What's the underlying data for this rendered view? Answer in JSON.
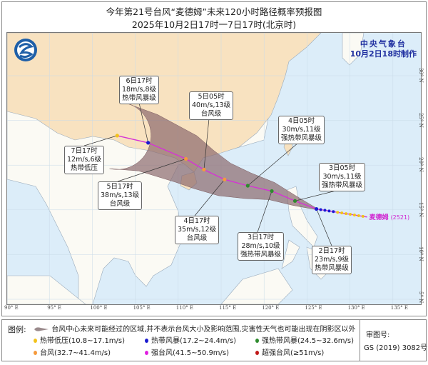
{
  "title": "今年第21号台风“麦德姆”未来120小时路径概率预报图",
  "subtitle": "2025年10月2日17时一7日17时(北京时)",
  "issuer": {
    "name": "中央气象台",
    "made": "10月2日18时制作"
  },
  "typhoon": {
    "name": "麦德姆",
    "code": "(2521)",
    "lon": 132.0,
    "lat": 14.2
  },
  "axes": {
    "lon_ticks": [
      "90° E",
      "95° E",
      "100° E",
      "105° E",
      "110° E",
      "115° E",
      "120° E",
      "125° E",
      "130° E",
      "135° E"
    ],
    "lat_ticks": [
      "30° N",
      "25° N",
      "20° N",
      "15° N",
      "10° N",
      "5° N"
    ]
  },
  "forecast_points": [
    {
      "time": "2日17时",
      "wind": "23m/s,9级",
      "level": "热带风暴级",
      "lon": 126.1,
      "lat": 15.1,
      "cat": "ts"
    },
    {
      "time": "3日05时",
      "wind": "30m/s,11级",
      "level": "强热带风暴级",
      "lon": 123.6,
      "lat": 16.0,
      "cat": "sts"
    },
    {
      "time": "3日17时",
      "wind": "28m/s,10级",
      "level": "强热带风暴级",
      "lon": 120.9,
      "lat": 17.1,
      "cat": "sts"
    },
    {
      "time": "4日05时",
      "wind": "30m/s,11级",
      "level": "强热带风暴级",
      "lon": 118.1,
      "lat": 17.7,
      "cat": "sts"
    },
    {
      "time": "4日17时",
      "wind": "35m/s,12级",
      "level": "台风级",
      "lon": 115.4,
      "lat": 18.4,
      "cat": "ty"
    },
    {
      "time": "5日05时",
      "wind": "40m/s,13级",
      "level": "台风级",
      "lon": 113.0,
      "lat": 19.5,
      "cat": "ty"
    },
    {
      "time": "5日17时",
      "wind": "38m/s,13级",
      "level": "台风级",
      "lon": 110.9,
      "lat": 20.7,
      "cat": "ty"
    },
    {
      "time": "6日17时",
      "wind": "18m/s,8级",
      "level": "热带风暴级",
      "lon": 106.5,
      "lat": 22.5,
      "cat": "ts"
    },
    {
      "time": "7日17时",
      "wind": "12m/s,6级",
      "level": "热带低压",
      "lon": 102.9,
      "lat": 23.3,
      "cat": "td"
    }
  ],
  "legend": {
    "title": "图例:",
    "cone": "台风中心未来可能经过的区域,并不表示台风大小及影响范围,灾害性天气也可能出现在阴影区以外",
    "items": [
      {
        "label": "热带低压(10.8~17.1m/s)",
        "color": "#f2c21b"
      },
      {
        "label": "热带风暴(17.2~24.4m/s)",
        "color": "#1a1ad0"
      },
      {
        "label": "强热带风暴(24.5~32.6m/s)",
        "color": "#2e8b2e"
      },
      {
        "label": "台风(32.7~41.4m/s)",
        "color": "#f59a3c"
      },
      {
        "label": "强台风(41.5~50.9m/s)",
        "color": "#e020e0"
      },
      {
        "label": "超强台风(≥51m/s)",
        "color": "#c01818"
      }
    ],
    "review_label": "审图号:",
    "review_no": "GS (2019) 3082号"
  },
  "colors": {
    "land_china": "#f8e2c0",
    "land_other": "#fbfaf4",
    "sea": "#dcedf9",
    "cone": "#8c6a6e",
    "track": "#d632d6"
  }
}
